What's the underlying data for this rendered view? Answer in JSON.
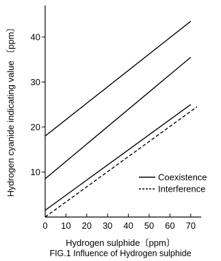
{
  "chart_data": {
    "type": "line",
    "xlabel": "Hydrogen sulphide〔ppm〕",
    "ylabel": "Hydrogen cyanide indicating value 〔ppm〕",
    "caption": "FIG.1 Influence of Hydrogen sulphide",
    "xlim": [
      0,
      75
    ],
    "ylim": [
      0,
      47
    ],
    "x_ticks": [
      0,
      10,
      20,
      30,
      40,
      50,
      60,
      70
    ],
    "y_ticks": [
      10,
      20,
      30,
      40
    ],
    "grid": false,
    "legend_position": "bottom-right",
    "legend": [
      {
        "label": "Coexistence",
        "style": "solid"
      },
      {
        "label": "Interference",
        "style": "dashed"
      }
    ],
    "series": [
      {
        "style": "solid",
        "x": [
          0,
          70
        ],
        "y": [
          18,
          43.5
        ]
      },
      {
        "style": "solid",
        "x": [
          0,
          70
        ],
        "y": [
          8.5,
          35.5
        ]
      },
      {
        "style": "solid",
        "x": [
          0,
          70
        ],
        "y": [
          1.5,
          25
        ]
      },
      {
        "style": "dashed",
        "x": [
          0,
          73
        ],
        "y": [
          0,
          24.5
        ]
      }
    ]
  }
}
